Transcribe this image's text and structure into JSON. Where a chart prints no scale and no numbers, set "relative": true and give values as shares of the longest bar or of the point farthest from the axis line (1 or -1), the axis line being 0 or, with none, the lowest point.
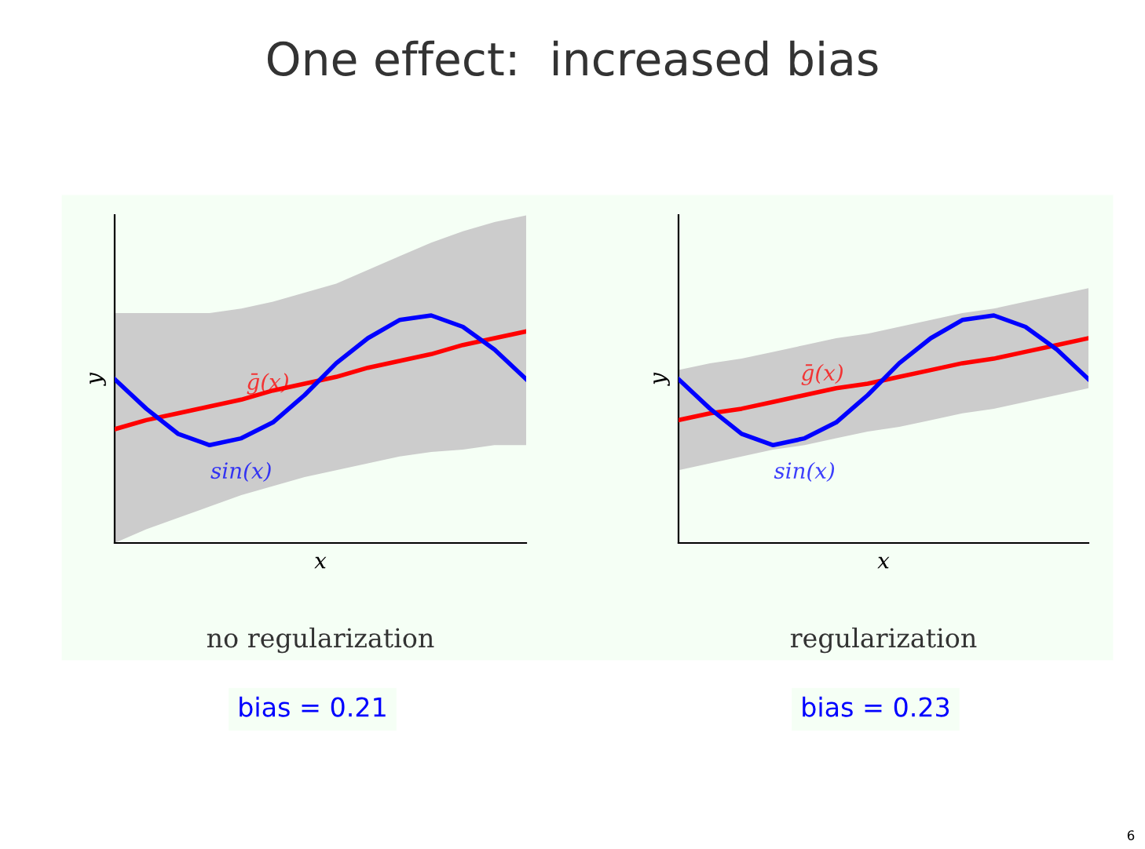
{
  "chart_data": [
    {
      "type": "line",
      "title": "One effect:  increased bias",
      "xlabel": "x",
      "ylabel": "y",
      "relative": true,
      "categories": [
        null,
        null,
        null,
        null,
        null,
        null,
        null,
        null,
        null,
        null,
        null,
        null,
        null,
        null
      ],
      "series": [
        {
          "name": "ḡ(x)",
          "color": "#ff0000",
          "values": [
            0.5,
            0.54,
            0.57,
            0.6,
            0.63,
            0.67,
            0.7,
            0.73,
            0.77,
            0.8,
            0.83,
            0.87,
            0.9,
            0.93
          ],
          "lower": [
            0,
            0.06,
            0.11,
            0.16,
            0.21,
            0.25,
            0.29,
            0.32,
            0.35,
            0.38,
            0.4,
            0.41,
            0.43,
            0.43
          ],
          "upper": [
            1.01,
            1.01,
            1.01,
            1.01,
            1.03,
            1.06,
            1.1,
            1.14,
            1.2,
            1.26,
            1.32,
            1.37,
            1.41,
            1.44
          ]
        },
        {
          "name": "sin(x)",
          "color": "#0000ff",
          "values": [
            0.72,
            0.59,
            0.48,
            0.43,
            0.46,
            0.53,
            0.65,
            0.79,
            0.9,
            0.98,
            1.0,
            0.95,
            0.85,
            0.72
          ]
        }
      ],
      "annotations": [
        "no regularization",
        "bias = 0.21"
      ]
    },
    {
      "type": "line",
      "xlabel": "x",
      "ylabel": "y",
      "relative": true,
      "categories": [
        null,
        null,
        null,
        null,
        null,
        null,
        null,
        null,
        null,
        null,
        null,
        null,
        null,
        null
      ],
      "series": [
        {
          "name": "ḡ(x)",
          "color": "#ff0000",
          "values": [
            0.54,
            0.57,
            0.59,
            0.62,
            0.65,
            0.68,
            0.7,
            0.73,
            0.76,
            0.79,
            0.81,
            0.84,
            0.87,
            0.9
          ],
          "lower": [
            0.32,
            0.35,
            0.38,
            0.41,
            0.43,
            0.46,
            0.49,
            0.51,
            0.54,
            0.57,
            0.59,
            0.62,
            0.65,
            0.68
          ],
          "upper": [
            0.76,
            0.79,
            0.81,
            0.84,
            0.87,
            0.9,
            0.92,
            0.95,
            0.98,
            1.01,
            1.03,
            1.06,
            1.09,
            1.12
          ]
        },
        {
          "name": "sin(x)",
          "color": "#0000ff",
          "values": [
            0.72,
            0.59,
            0.48,
            0.43,
            0.46,
            0.53,
            0.65,
            0.79,
            0.9,
            0.98,
            1.0,
            0.95,
            0.85,
            0.72
          ]
        }
      ],
      "annotations": [
        "regularization",
        "bias = 0.23",
        "6"
      ]
    }
  ]
}
